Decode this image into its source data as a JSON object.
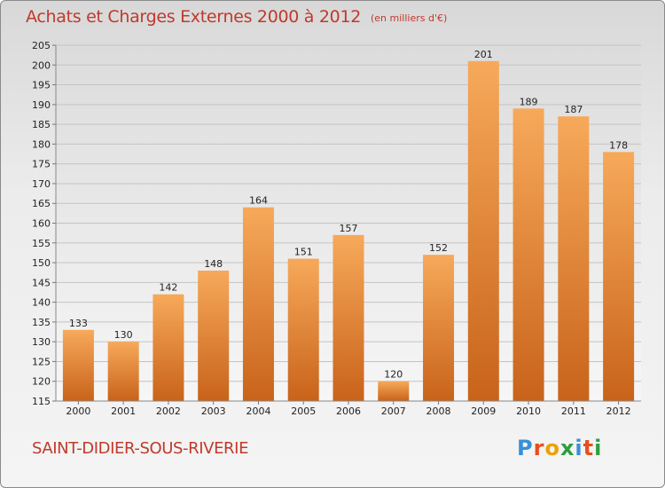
{
  "header": {
    "title": "Achats et Charges Externes 2000 à 2012",
    "unit": "(en milliers d'€)"
  },
  "footer": {
    "city": "SAINT-DIDIER-SOUS-RIVERIE",
    "logo_letters": [
      "P",
      "r",
      "o",
      "x",
      "i",
      "t",
      "i"
    ],
    "logo_colors": [
      "#3a8fd6",
      "#e94e1b",
      "#f0a000",
      "#2e9e3e",
      "#3a8fd6",
      "#e94e1b",
      "#2e9e3e"
    ]
  },
  "chart_data": {
    "type": "bar",
    "title": "Achats et Charges Externes 2000 à 2012",
    "categories": [
      "2000",
      "2001",
      "2002",
      "2003",
      "2004",
      "2005",
      "2006",
      "2007",
      "2008",
      "2009",
      "2010",
      "2011",
      "2012"
    ],
    "values": [
      133,
      130,
      142,
      148,
      164,
      151,
      157,
      120,
      152,
      201,
      189,
      187,
      178
    ],
    "ylim": [
      115,
      205
    ],
    "yticks": [
      115,
      120,
      125,
      130,
      135,
      140,
      145,
      150,
      155,
      160,
      165,
      170,
      175,
      180,
      185,
      190,
      195,
      200,
      205
    ],
    "grid": true,
    "bar_color_top": "#f7a95a",
    "bar_color_bottom": "#c8631a",
    "xlabel": "",
    "ylabel": ""
  }
}
